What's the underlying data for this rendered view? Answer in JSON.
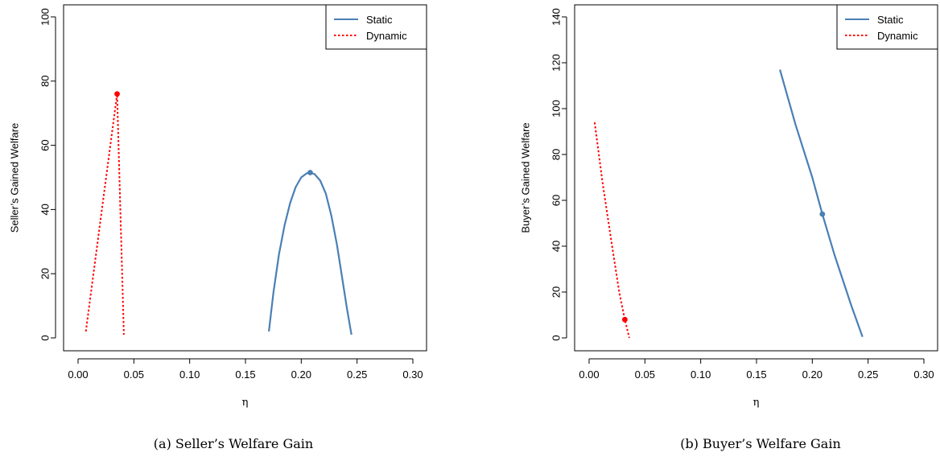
{
  "colors": {
    "static": "#4a7fb5",
    "dynamic": "#ff0000"
  },
  "chart_data": [
    {
      "type": "line",
      "caption": "(a) Seller’s Welfare Gain",
      "xlabel": "η",
      "ylabel": "Seller’s Gained Welfare",
      "xlim": [
        0,
        0.3
      ],
      "ylim": [
        0,
        100
      ],
      "xticks": [
        "0.00",
        "0.05",
        "0.10",
        "0.15",
        "0.20",
        "0.25",
        "0.30"
      ],
      "yticks": [
        "0",
        "20",
        "40",
        "60",
        "80",
        "100"
      ],
      "grid": false,
      "legend": {
        "placement": "top-right",
        "entries": [
          "Static",
          "Dynamic"
        ]
      },
      "series": [
        {
          "name": "Static",
          "style": "solid",
          "x": [
            0.171,
            0.175,
            0.18,
            0.185,
            0.19,
            0.195,
            0.2,
            0.205,
            0.208,
            0.212,
            0.217,
            0.222,
            0.227,
            0.232,
            0.237,
            0.241,
            0.245
          ],
          "y": [
            2,
            14,
            26,
            35,
            42,
            47,
            50,
            51.3,
            51.5,
            51,
            49,
            45,
            38,
            29,
            18,
            9,
            1
          ],
          "marker": {
            "x": 0.208,
            "y": 51.5
          }
        },
        {
          "name": "Dynamic",
          "style": "dotted",
          "x": [
            0.007,
            0.035,
            0.041
          ],
          "y": [
            2,
            76,
            1
          ],
          "marker": {
            "x": 0.035,
            "y": 76
          }
        }
      ]
    },
    {
      "type": "line",
      "caption": "(b) Buyer’s Welfare Gain",
      "xlabel": "η",
      "ylabel": "Buyer’s  Gained Welfare",
      "xlim": [
        0,
        0.3
      ],
      "ylim": [
        0,
        140
      ],
      "xticks": [
        "0.00",
        "0.05",
        "0.10",
        "0.15",
        "0.20",
        "0.25",
        "0.30"
      ],
      "yticks": [
        "0",
        "20",
        "40",
        "60",
        "80",
        "100",
        "120",
        "140"
      ],
      "grid": false,
      "legend": {
        "placement": "top-right",
        "entries": [
          "Static",
          "Dynamic"
        ]
      },
      "series": [
        {
          "name": "Static",
          "style": "solid",
          "x": [
            0.171,
            0.185,
            0.2,
            0.209,
            0.22,
            0.235,
            0.245
          ],
          "y": [
            117,
            93,
            70,
            54,
            36,
            14,
            0.5
          ],
          "marker": {
            "x": 0.209,
            "y": 54
          }
        },
        {
          "name": "Dynamic",
          "style": "dotted",
          "x": [
            0.005,
            0.012,
            0.02,
            0.027,
            0.032,
            0.036
          ],
          "y": [
            94,
            68,
            42,
            20,
            8,
            0
          ],
          "marker": {
            "x": 0.032,
            "y": 8
          }
        }
      ]
    }
  ]
}
